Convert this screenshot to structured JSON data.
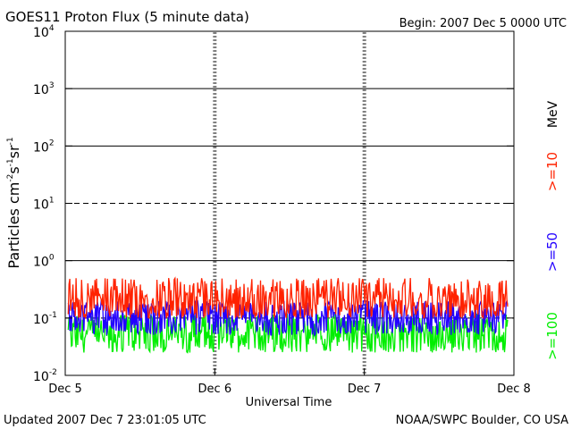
{
  "header": {
    "title": "GOES11 Proton Flux (5 minute data)",
    "begin": "Begin: 2007 Dec 5 0000 UTC"
  },
  "footer": {
    "updated": "Updated 2007 Dec  7 23:01:05 UTC",
    "credit": "NOAA/SWPC Boulder, CO USA"
  },
  "colors": {
    "ge10": "#ff2200",
    "ge50": "#2200ff",
    "ge100": "#00ee00",
    "axis": "#000000"
  },
  "chart_data": {
    "type": "line",
    "title": "GOES11 Proton Flux (5 minute data)",
    "xlabel": "Universal Time",
    "ylabel": "Particles cm⁻²s⁻¹sr⁻¹",
    "yscale": "log",
    "ylim": [
      0.01,
      10000
    ],
    "xlim": [
      "2007-12-05 00:00",
      "2007-12-08 00:00"
    ],
    "x_ticks": [
      "Dec 5",
      "Dec 6",
      "Dec 7",
      "Dec 8"
    ],
    "y_ticks": [
      {
        "base": "10",
        "exp": "4"
      },
      {
        "base": "10",
        "exp": "3"
      },
      {
        "base": "10",
        "exp": "2"
      },
      {
        "base": "10",
        "exp": "1"
      },
      {
        "base": "10",
        "exp": "0"
      },
      {
        "base": "10",
        "exp": "-1"
      },
      {
        "base": "10",
        "exp": "-2"
      }
    ],
    "unit_label": "MeV",
    "series": [
      {
        "name": ">=10",
        "color": "#ff2200",
        "typical": 0.2,
        "range": [
          0.1,
          0.5
        ]
      },
      {
        "name": ">=50",
        "color": "#2200ff",
        "typical": 0.1,
        "range": [
          0.05,
          0.2
        ]
      },
      {
        "name": ">=100",
        "color": "#00ee00",
        "typical": 0.05,
        "range": [
          0.025,
          0.12
        ]
      }
    ],
    "end": "2007-12-07 23:00"
  }
}
